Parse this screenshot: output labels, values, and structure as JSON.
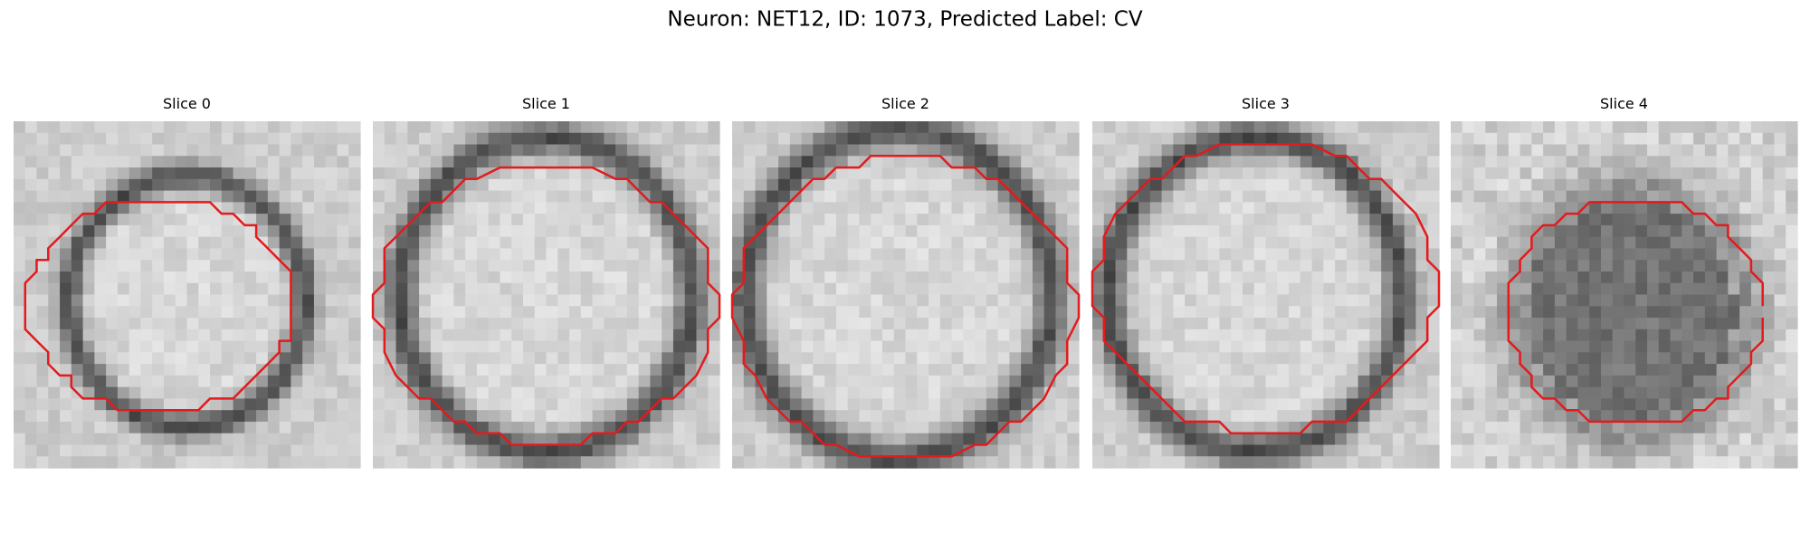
{
  "title": "Neuron: NET12, ID: 1073, Predicted Label: CV",
  "panels": [
    {
      "title": "Slice 0"
    },
    {
      "title": "Slice 1"
    },
    {
      "title": "Slice 2"
    },
    {
      "title": "Slice 3"
    },
    {
      "title": "Slice 4"
    }
  ]
}
